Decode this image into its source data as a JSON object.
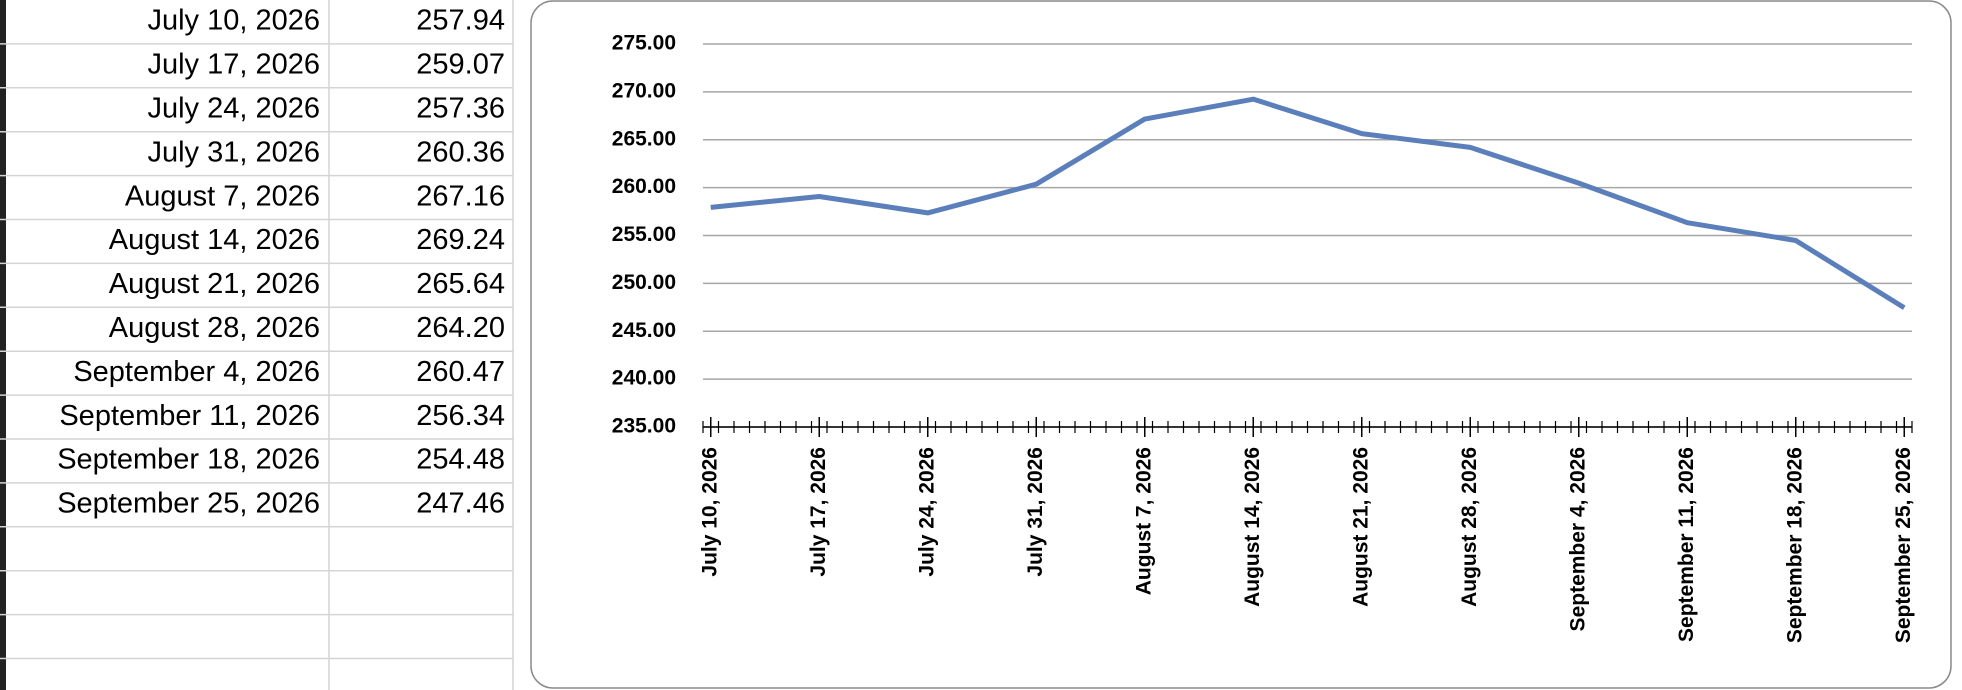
{
  "table": {
    "rows": [
      [
        "July 10, 2026",
        "257.94"
      ],
      [
        "July 17, 2026",
        "259.07"
      ],
      [
        "July 24, 2026",
        "257.36"
      ],
      [
        "July 31, 2026",
        "260.36"
      ],
      [
        "August 7, 2026",
        "267.16"
      ],
      [
        "August 14, 2026",
        "269.24"
      ],
      [
        "August 21, 2026",
        "265.64"
      ],
      [
        "August 28, 2026",
        "264.20"
      ],
      [
        "September 4, 2026",
        "260.47"
      ],
      [
        "September 11, 2026",
        "256.34"
      ],
      [
        "September 18, 2026",
        "254.48"
      ],
      [
        "September 25, 2026",
        "247.46"
      ]
    ]
  },
  "chart_data": {
    "type": "line",
    "x": [
      "July 10, 2026",
      "July 17, 2026",
      "July 24, 2026",
      "July 31, 2026",
      "August 7, 2026",
      "August 14, 2026",
      "August 21, 2026",
      "August 28, 2026",
      "September 4, 2026",
      "September 11, 2026",
      "September 18, 2026",
      "September 25, 2026"
    ],
    "values": [
      257.94,
      259.07,
      257.36,
      260.36,
      267.16,
      269.24,
      265.64,
      264.2,
      260.47,
      256.34,
      254.48,
      247.46
    ],
    "color": "#5b7fbb",
    "ylim": [
      235,
      275
    ],
    "yticks": [
      {
        "value": 235,
        "label": "235.00"
      },
      {
        "value": 240,
        "label": "240.00"
      },
      {
        "value": 245,
        "label": "245.00"
      },
      {
        "value": 250,
        "label": "250.00"
      },
      {
        "value": 255,
        "label": "255.00"
      },
      {
        "value": 260,
        "label": "260.00"
      },
      {
        "value": 265,
        "label": "265.00"
      },
      {
        "value": 270,
        "label": "270.00"
      },
      {
        "value": 275,
        "label": "275.00"
      }
    ],
    "grid": true
  }
}
